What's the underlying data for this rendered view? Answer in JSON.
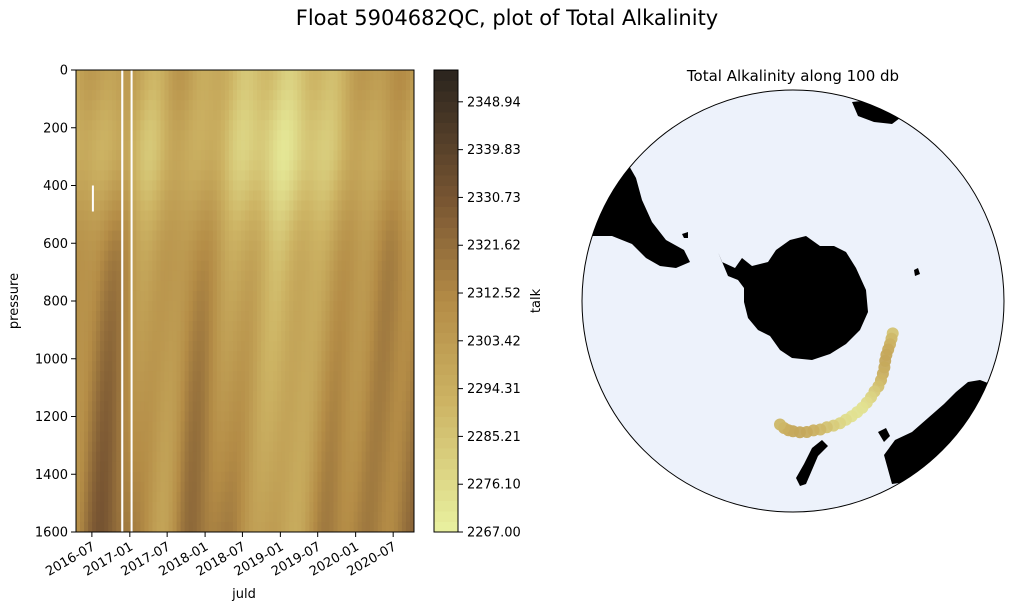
{
  "figure": {
    "title": "Float 5904682QC, plot of Total Alkalinity"
  },
  "chart_data": [
    {
      "type": "heatmap",
      "xlabel": "juld",
      "ylabel": "pressure",
      "x_range": [
        "2016-04-15",
        "2020-10-10"
      ],
      "xticks": [
        "2016-07",
        "2017-01",
        "2017-07",
        "2018-01",
        "2018-07",
        "2019-01",
        "2019-07",
        "2020-01",
        "2020-07"
      ],
      "xtick_dates": [
        "2016-07-01",
        "2017-01-01",
        "2017-07-01",
        "2018-01-01",
        "2018-07-01",
        "2019-01-01",
        "2019-07-01",
        "2020-01-01",
        "2020-07-01"
      ],
      "ylim": [
        1600,
        0
      ],
      "yticks": [
        0,
        200,
        400,
        600,
        800,
        1000,
        1200,
        1400,
        1600
      ],
      "colorbar": {
        "label": "talk",
        "range": [
          2267.0,
          2355.0
        ],
        "ticks": [
          "2267.00",
          "2276.10",
          "2285.21",
          "2294.31",
          "2303.42",
          "2312.52",
          "2321.62",
          "2330.73",
          "2339.83",
          "2348.94"
        ],
        "tick_values": [
          2267.0,
          2276.1,
          2285.21,
          2294.31,
          2303.42,
          2312.52,
          2321.62,
          2330.73,
          2339.83,
          2348.94
        ]
      },
      "gaps": [
        {
          "date_start": "2016-11-20",
          "date_end": "2016-11-30",
          "p_start": 0,
          "p_end": 1600
        },
        {
          "date_start": "2017-01-05",
          "date_end": "2017-01-12",
          "p_start": 0,
          "p_end": 1600
        },
        {
          "date_start": "2016-07-01",
          "date_end": "2016-07-08",
          "p_start": 400,
          "p_end": 490
        }
      ]
    },
    {
      "type": "scatter",
      "title": "Total Alkalinity along 100 db",
      "projection": "south-polar-stereographic",
      "colors": {
        "ocean": "#edf2fb",
        "land": "#000000",
        "track": "#c9ad58"
      },
      "track_lonlat": [
        [
          108,
          -59.2
        ],
        [
          111,
          -59.0
        ],
        [
          114,
          -58.8
        ],
        [
          117,
          -58.6
        ],
        [
          120,
          -58.3
        ],
        [
          123,
          -57.7
        ],
        [
          126,
          -56.8
        ],
        [
          129,
          -56.0
        ],
        [
          132,
          -55.2
        ],
        [
          135,
          -54.5
        ],
        [
          138,
          -54.2
        ],
        [
          141,
          -53.6
        ],
        [
          144,
          -53.1
        ],
        [
          147,
          -52.6
        ],
        [
          150,
          -52.3
        ],
        [
          153,
          -52.0
        ],
        [
          156,
          -51.8
        ],
        [
          159,
          -51.5
        ],
        [
          162,
          -51.5
        ],
        [
          165,
          -51.6
        ],
        [
          168,
          -51.4
        ],
        [
          171,
          -51.5
        ],
        [
          174,
          -51.3
        ],
        [
          177,
          -51.4
        ],
        [
          180,
          -51.7
        ],
        [
          -178,
          -52.0
        ],
        [
          -176,
          -52.6
        ],
        [
          -174,
          -53.5
        ]
      ]
    }
  ]
}
